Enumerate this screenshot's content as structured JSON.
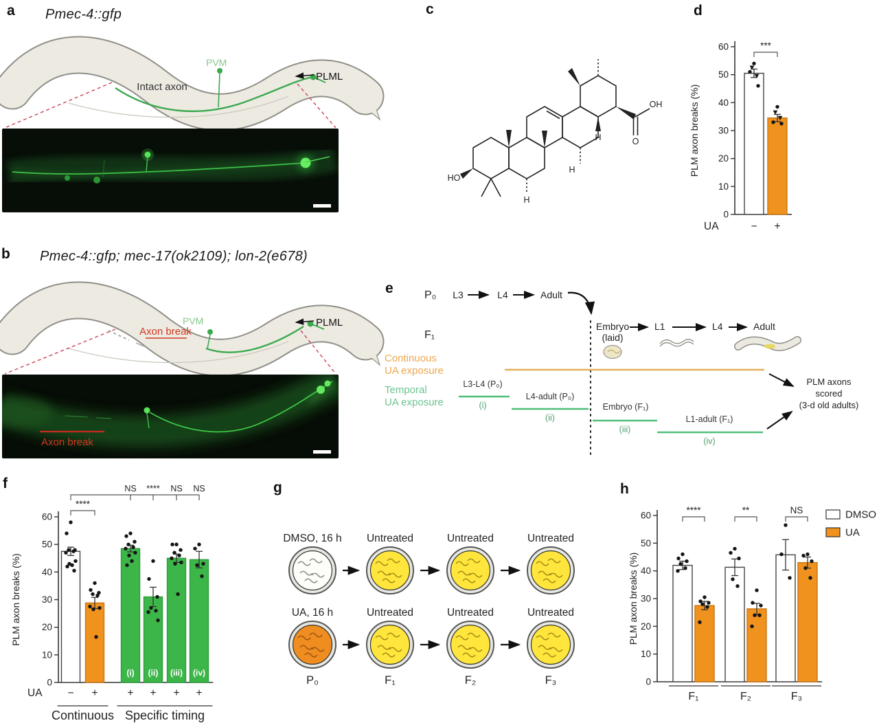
{
  "panel_a": {
    "label": "a",
    "title": "Pmec-4::gfp",
    "pvm": "PVM",
    "axon_label": "Intact axon",
    "plml": "PLML"
  },
  "panel_b": {
    "label": "b",
    "title": "Pmec-4::gfp; mec-17(ok2109); lon-2(e678)",
    "pvm": "PVM",
    "axon_label": "Axon break",
    "plml": "PLML",
    "image_label": "Axon break"
  },
  "panel_c": {
    "label": "c",
    "ho": "HO",
    "oh": "OH",
    "o": "O",
    "h1": "H",
    "h2": "H",
    "h3": "H"
  },
  "panel_e": {
    "label": "e",
    "p0": "P₀",
    "f1": "F₁",
    "l3": "L3",
    "l4": "L4",
    "adult": "Adult",
    "embryo": "Embryo",
    "laid": "(laid)",
    "f1_l1": "L1",
    "f1_l4": "L4",
    "f1_adult": "Adult",
    "continuous_line1": "Continuous",
    "continuous_line2": "UA exposure",
    "temporal_line1": "Temporal",
    "temporal_line2": "UA exposure",
    "segments": [
      {
        "label": "L3-L4 (P₀)",
        "tag": "(i)"
      },
      {
        "label": "L4-adult (P₀)",
        "tag": "(ii)"
      },
      {
        "label": "Embryo (F₁)",
        "tag": "(iii)"
      },
      {
        "label": "L1-adult (F₁)",
        "tag": "(iv)"
      }
    ],
    "scored_line1": "PLM axons",
    "scored_line2": "scored",
    "scored_line3": "(3-d old adults)"
  },
  "panel_g": {
    "label": "g",
    "row1_labels": [
      "DMSO, 16 h",
      "Untreated",
      "Untreated",
      "Untreated"
    ],
    "row2_labels": [
      "UA, 16 h",
      "Untreated",
      "Untreated",
      "Untreated"
    ],
    "generation_labels": [
      "P₀",
      "F₁",
      "F₂",
      "F₃"
    ]
  },
  "chart_data": [
    {
      "id": "d",
      "panel_label": "d",
      "type": "bar",
      "ylabel": "PLM axon breaks (%)",
      "ylim": [
        0,
        60
      ],
      "yticks": [
        0,
        10,
        20,
        30,
        40,
        50,
        60
      ],
      "x_row_label": "UA",
      "categories": [
        "−",
        "+"
      ],
      "bars": [
        {
          "value": 50.5,
          "err": 1.5,
          "color": "white",
          "points": [
            54,
            51,
            46
          ],
          "tri_points": [
            52.5,
            49.5
          ]
        },
        {
          "value": 34.5,
          "err": 1.3,
          "color": "orange",
          "points": [
            38.5,
            33,
            32.5
          ],
          "tri_points": [
            36.5,
            34.5
          ]
        }
      ],
      "brackets": [
        {
          "a": 0,
          "b": 1,
          "label": "***"
        }
      ]
    },
    {
      "id": "f",
      "panel_label": "f",
      "type": "bar",
      "ylabel": "PLM axon breaks (%)",
      "ylim": [
        0,
        60
      ],
      "yticks": [
        0,
        10,
        20,
        30,
        40,
        50,
        60
      ],
      "x_row_label": "UA",
      "categories": [
        "−",
        "+",
        "+",
        "+",
        "+",
        "+"
      ],
      "bars": [
        {
          "value": 47.5,
          "err": 1.5,
          "color": "white",
          "points": [
            58,
            54,
            48,
            48,
            47.5,
            47,
            44,
            43,
            42.5,
            42,
            40.5
          ]
        },
        {
          "value": 28.8,
          "err": 2.0,
          "color": "orange",
          "points": [
            36,
            33.5,
            32.5,
            32,
            31.5,
            27.5,
            27,
            26.5,
            16.5
          ]
        },
        {
          "value": 48.5,
          "err": 1.2,
          "color": "green",
          "inside_label": "(i)",
          "points": [
            54,
            53,
            51,
            50,
            49,
            48.5,
            47,
            46,
            44,
            42.5
          ]
        },
        {
          "value": 31.0,
          "err": 3.5,
          "color": "green",
          "inside_label": "(ii)",
          "points": [
            44,
            37.5,
            31,
            27,
            26,
            25.5,
            22.5
          ]
        },
        {
          "value": 45.0,
          "err": 1.5,
          "color": "green",
          "inside_label": "(iii)",
          "points": [
            50,
            50,
            48,
            47,
            46,
            45,
            43.5,
            43,
            32
          ]
        },
        {
          "value": 44.5,
          "err": 3.0,
          "color": "green",
          "inside_label": "(iv)",
          "points": [
            50,
            48.5,
            43,
            42.5,
            38.5
          ]
        }
      ],
      "brackets": [
        {
          "a": 0,
          "b": 1,
          "label": "****"
        }
      ],
      "top_bracket": {
        "from": 0,
        "to": 5,
        "ticks": [
          2,
          3,
          4,
          5
        ],
        "labels": [
          "NS",
          "****",
          "NS",
          "NS"
        ]
      },
      "groups": [
        {
          "label": "Continuous",
          "from": 0,
          "to": 1
        },
        {
          "label": "Specific timing",
          "from": 2,
          "to": 5
        }
      ]
    },
    {
      "id": "h",
      "panel_label": "h",
      "type": "grouped-bar",
      "ylabel": "PLM axon breaks (%)",
      "ylim": [
        0,
        60
      ],
      "yticks": [
        0,
        10,
        20,
        30,
        40,
        50,
        60
      ],
      "bars": [
        {
          "value": 42.0,
          "err": 1.5,
          "color": "white",
          "points": [
            46,
            44.5,
            43.5,
            42.5,
            41,
            40
          ]
        },
        {
          "value": 27.5,
          "err": 1.5,
          "color": "orange",
          "points": [
            30.5,
            29,
            28.5,
            28,
            27,
            21.5
          ]
        },
        {
          "value": 41.3,
          "err": 3.0,
          "color": "white",
          "points": [
            48,
            46.5,
            44.5,
            37,
            34.5
          ]
        },
        {
          "value": 26.3,
          "err": 2.0,
          "color": "orange",
          "points": [
            33,
            28.5,
            27.5,
            24,
            24,
            20
          ]
        },
        {
          "value": 45.8,
          "err": 5.5,
          "color": "white",
          "points": [
            56.5,
            46,
            37.5
          ]
        },
        {
          "value": 43.0,
          "err": 2.0,
          "color": "orange",
          "points": [
            46,
            45.5,
            43.5,
            41,
            37.5
          ]
        }
      ],
      "brackets": [
        {
          "a": 0,
          "b": 1,
          "label": "****"
        },
        {
          "a": 2,
          "b": 3,
          "label": "**"
        },
        {
          "a": 4,
          "b": 5,
          "label": "NS"
        }
      ],
      "groups": [
        {
          "label": "F₁",
          "from": 0,
          "to": 1
        },
        {
          "label": "F₂",
          "from": 2,
          "to": 3
        },
        {
          "label": "F₃",
          "from": 4,
          "to": 5
        }
      ],
      "legend": [
        {
          "label": "DMSO",
          "color": "white"
        },
        {
          "label": "UA",
          "color": "orange"
        }
      ]
    }
  ],
  "colors": {
    "orange_bar": "#F0921E",
    "green_bar": "#3CB649",
    "timeline_orange": "#E3AF5B",
    "timeline_green": "#4FBE79",
    "red_annotation": "#D2371F",
    "gfp_green": "#3FCA49",
    "dish_yellow": "#FFE53C",
    "dish_orange": "#EF8D21"
  }
}
